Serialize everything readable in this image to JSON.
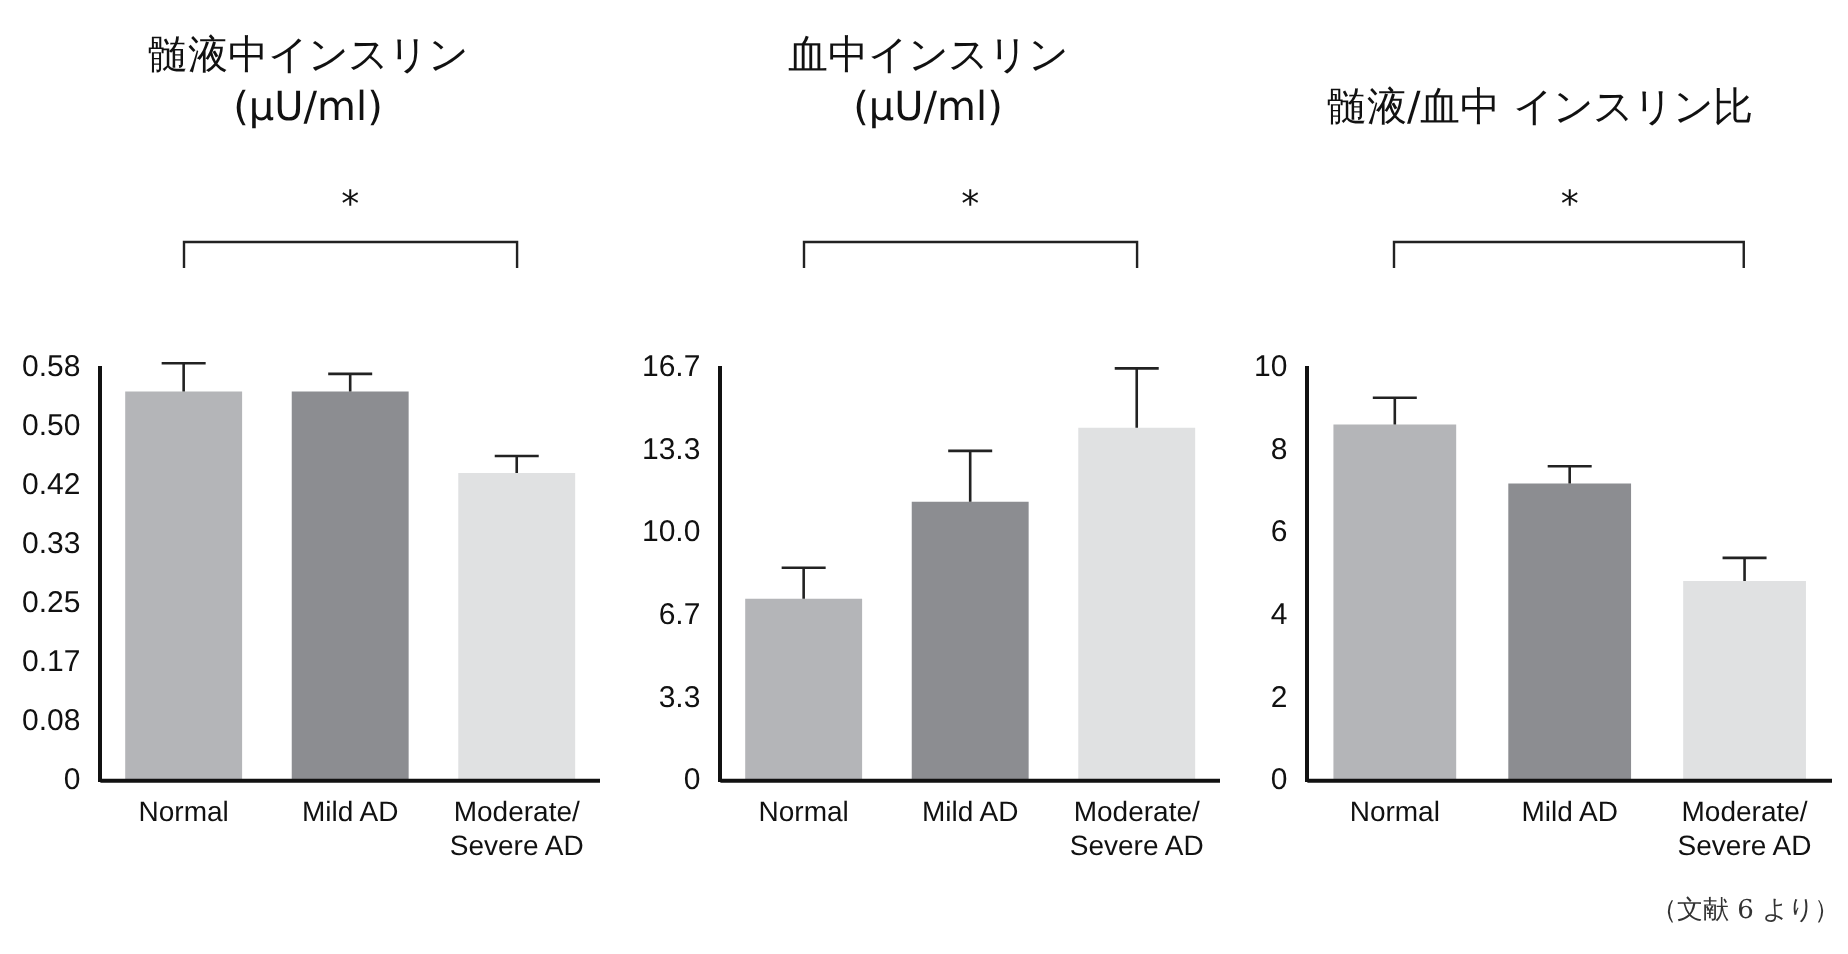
{
  "chart_data": [
    {
      "type": "bar",
      "title": "髄液中インスリン\n(μU/ml)",
      "categories": [
        "Normal",
        "Mild AD",
        "Moderate/\nSevere AD"
      ],
      "values": [
        0.55,
        0.55,
        0.435
      ],
      "errors": [
        0.04,
        0.025,
        0.024
      ],
      "colors": [
        "#b4b5b8",
        "#8c8d91",
        "#e0e1e2"
      ],
      "ylim": [
        0,
        0.5833
      ],
      "yticks": [
        0,
        {
          "value": 0.0833,
          "label": "0.08"
        },
        {
          "value": 0.1667,
          "label": "0.17"
        },
        0.25,
        {
          "value": 0.3333,
          "label": "0.33"
        },
        {
          "value": 0.4167,
          "label": "0.42"
        },
        {
          "value": 0.5,
          "label": "0.50"
        },
        {
          "value": 0.5833,
          "label": "0.58"
        }
      ],
      "grid": false,
      "legend": false,
      "annotations": [
        "*"
      ]
    },
    {
      "type": "bar",
      "title": "血中インスリン\n(μU/ml)",
      "categories": [
        "Normal",
        "Mild AD",
        "Moderate/\nSevere AD"
      ],
      "values": [
        7.35,
        11.27,
        14.25
      ],
      "errors": [
        1.25,
        2.05,
        2.4
      ],
      "colors": [
        "#b4b5b8",
        "#8c8d91",
        "#e0e1e2"
      ],
      "ylim": [
        0,
        16.667
      ],
      "yticks": [
        0,
        {
          "value": 3.333,
          "label": "3.3"
        },
        {
          "value": 6.667,
          "label": "6.7"
        },
        {
          "value": 10,
          "label": "10.0"
        },
        {
          "value": 13.333,
          "label": "13.3"
        },
        {
          "value": 16.667,
          "label": "16.7"
        }
      ],
      "grid": false,
      "legend": false,
      "annotations": [
        "*"
      ]
    },
    {
      "type": "bar",
      "title": "髄液/血中 インスリン比",
      "categories": [
        "Normal",
        "Mild AD",
        "Moderate/\nSevere AD"
      ],
      "values": [
        8.63,
        7.2,
        4.84
      ],
      "errors": [
        0.65,
        0.42,
        0.56
      ],
      "colors": [
        "#b4b5b8",
        "#8c8d91",
        "#e0e1e2"
      ],
      "ylim": [
        0,
        10
      ],
      "yticks": [
        0,
        2,
        4,
        6,
        8,
        10
      ],
      "grid": false,
      "legend": false,
      "annotations": [
        "*",
        "（文献 6 より）"
      ]
    }
  ]
}
